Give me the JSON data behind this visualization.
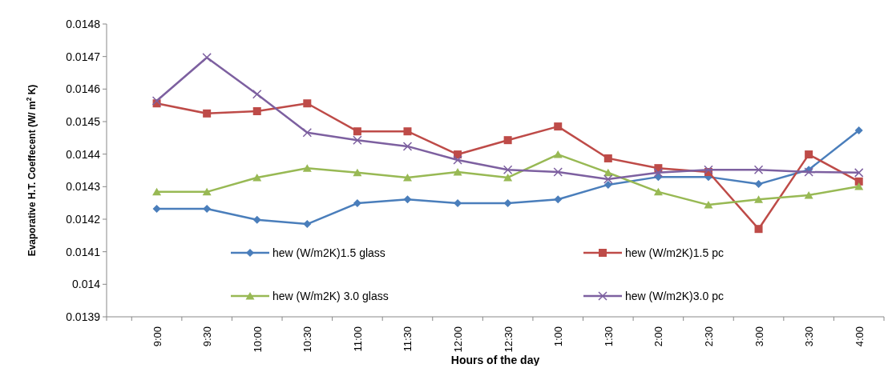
{
  "chart_data": {
    "type": "line",
    "xlabel": "Hours of the day",
    "ylabel": "Evaporative H.T. Coeffecent (W/ m$^{2}$ K)",
    "categories": [
      null,
      "9:00",
      "9:30",
      "10:00",
      "10:30",
      "11:00",
      "11:30",
      "12:00",
      "12:30",
      "1:00",
      "1:30",
      "2:00",
      "2:30",
      "3:00",
      "3:30",
      "4:00"
    ],
    "ylim": [
      0.0139,
      0.0148
    ],
    "yticks": [
      0.0139,
      0.014,
      0.0141,
      0.0142,
      0.0143,
      0.0144,
      0.0145,
      0.0146,
      0.0147,
      0.0148
    ],
    "grid": false,
    "legend": "bottom",
    "line_style": "solid",
    "series": [
      {
        "name": "hew (W/m2K)1.5 glass",
        "color": "#4a7ebb",
        "marker": "diamond",
        "values": [
          null,
          0.014232,
          0.014232,
          0.014198,
          0.014185,
          0.014249,
          0.014261,
          0.014249,
          0.014249,
          0.014261,
          0.014306,
          0.01433,
          0.01433,
          0.014308,
          0.014352,
          0.014473
        ]
      },
      {
        "name": "hew (W/m2K)1.5 pc",
        "color": "#be4b48",
        "marker": "square",
        "values": [
          null,
          0.014556,
          0.014525,
          0.014532,
          0.014556,
          0.01447,
          0.01447,
          0.014399,
          0.014443,
          0.014485,
          0.014387,
          0.014357,
          0.014345,
          0.01417,
          0.014399,
          0.014316
        ]
      },
      {
        "name": "hew (W/m2K) 3.0 glass",
        "color": "#98b954",
        "marker": "triangle",
        "values": [
          null,
          0.014284,
          0.014284,
          0.014328,
          0.014357,
          0.014343,
          0.014328,
          0.014345,
          0.014328,
          0.014399,
          0.014343,
          0.014284,
          0.014244,
          0.014261,
          0.014274,
          0.014301
        ]
      },
      {
        "name": "hew (W/m2K)3.0 pc",
        "color": "#7d60a0",
        "marker": "cross",
        "values": [
          null,
          0.014564,
          0.014697,
          0.014584,
          0.014466,
          0.014443,
          0.014424,
          0.014382,
          0.014352,
          0.014345,
          0.014323,
          0.014343,
          0.014352,
          0.014352,
          0.014345,
          0.014343
        ]
      }
    ]
  }
}
